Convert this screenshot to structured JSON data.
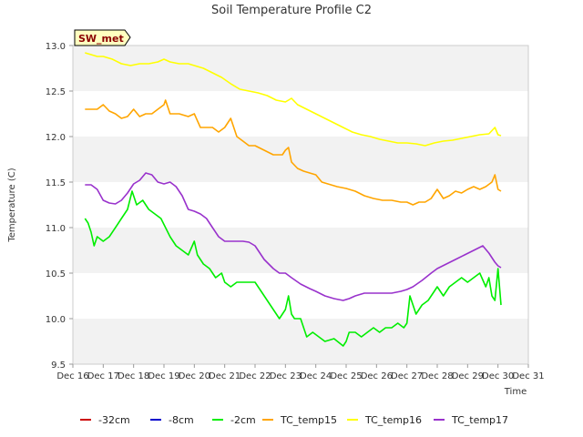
{
  "chart_data": {
    "type": "line",
    "title": "Soil Temperature Profile C2",
    "xlabel": "Time",
    "ylabel": "Temperature (C)",
    "badge": "SW_met",
    "ylim": [
      9.5,
      13.0
    ],
    "xlim": [
      16,
      31
    ],
    "y_ticks": [
      "9.5",
      "10.0",
      "10.5",
      "11.0",
      "11.5",
      "12.0",
      "12.5",
      "13.0"
    ],
    "x_ticks": [
      "Dec 16",
      "Dec 17",
      "Dec 18",
      "Dec 19",
      "Dec 20",
      "Dec 21",
      "Dec 22",
      "Dec 23",
      "Dec 24",
      "Dec 25",
      "Dec 26",
      "Dec 27",
      "Dec 28",
      "Dec 29",
      "Dec 30",
      "Dec 31"
    ],
    "grid_bands": true,
    "legend_position": "bottom",
    "series": [
      {
        "name": "-32cm",
        "color": "#cc0000",
        "x": [],
        "y": []
      },
      {
        "name": "-8cm",
        "color": "#0000cc",
        "x": [],
        "y": []
      },
      {
        "name": "-2cm",
        "color": "#00ee00",
        "x": [
          16.4,
          16.5,
          16.6,
          16.7,
          16.8,
          17.0,
          17.2,
          17.4,
          17.6,
          17.8,
          17.95,
          18.1,
          18.3,
          18.5,
          18.7,
          18.9,
          19.05,
          19.2,
          19.4,
          19.6,
          19.8,
          20.0,
          20.1,
          20.3,
          20.5,
          20.7,
          20.9,
          21.0,
          21.2,
          21.4,
          21.6,
          21.8,
          22.0,
          22.2,
          22.5,
          22.8,
          23.0,
          23.1,
          23.2,
          23.3,
          23.5,
          23.7,
          23.9,
          24.1,
          24.3,
          24.6,
          24.9,
          25.0,
          25.1,
          25.3,
          25.5,
          25.7,
          25.9,
          26.1,
          26.3,
          26.5,
          26.7,
          26.9,
          27.0,
          27.1,
          27.3,
          27.5,
          27.7,
          27.9,
          28.0,
          28.2,
          28.4,
          28.6,
          28.8,
          29.0,
          29.2,
          29.4,
          29.6,
          29.7,
          29.8,
          29.9,
          30.0,
          30.1
        ],
        "y": [
          11.1,
          11.05,
          10.95,
          10.8,
          10.9,
          10.85,
          10.9,
          11.0,
          11.1,
          11.2,
          11.4,
          11.25,
          11.3,
          11.2,
          11.15,
          11.1,
          11.0,
          10.9,
          10.8,
          10.75,
          10.7,
          10.85,
          10.7,
          10.6,
          10.55,
          10.45,
          10.5,
          10.4,
          10.35,
          10.4,
          10.4,
          10.4,
          10.4,
          10.3,
          10.15,
          10.0,
          10.1,
          10.25,
          10.05,
          10.0,
          10.0,
          9.8,
          9.85,
          9.8,
          9.75,
          9.78,
          9.7,
          9.75,
          9.85,
          9.85,
          9.8,
          9.85,
          9.9,
          9.85,
          9.9,
          9.9,
          9.95,
          9.9,
          9.95,
          10.25,
          10.05,
          10.15,
          10.2,
          10.3,
          10.35,
          10.25,
          10.35,
          10.4,
          10.45,
          10.4,
          10.45,
          10.5,
          10.35,
          10.45,
          10.25,
          10.2,
          10.55,
          10.15
        ]
      },
      {
        "name": "TC_temp15",
        "color": "#ffa500",
        "x": [
          16.4,
          16.6,
          16.8,
          17.0,
          17.2,
          17.4,
          17.6,
          17.8,
          18.0,
          18.2,
          18.4,
          18.6,
          18.8,
          19.0,
          19.05,
          19.2,
          19.5,
          19.8,
          20.0,
          20.2,
          20.4,
          20.6,
          20.8,
          21.0,
          21.2,
          21.4,
          21.6,
          21.8,
          22.0,
          22.3,
          22.6,
          22.9,
          23.0,
          23.1,
          23.2,
          23.4,
          23.6,
          23.8,
          24.0,
          24.2,
          24.4,
          24.7,
          25.0,
          25.3,
          25.6,
          25.9,
          26.2,
          26.5,
          26.8,
          27.0,
          27.2,
          27.4,
          27.6,
          27.8,
          28.0,
          28.2,
          28.4,
          28.6,
          28.8,
          29.0,
          29.2,
          29.4,
          29.6,
          29.8,
          29.9,
          30.0,
          30.1
        ],
        "y": [
          12.3,
          12.3,
          12.3,
          12.35,
          12.28,
          12.25,
          12.2,
          12.22,
          12.3,
          12.22,
          12.25,
          12.25,
          12.3,
          12.35,
          12.4,
          12.25,
          12.25,
          12.22,
          12.25,
          12.1,
          12.1,
          12.1,
          12.05,
          12.1,
          12.2,
          12.0,
          11.95,
          11.9,
          11.9,
          11.85,
          11.8,
          11.8,
          11.85,
          11.88,
          11.72,
          11.65,
          11.62,
          11.6,
          11.58,
          11.5,
          11.48,
          11.45,
          11.43,
          11.4,
          11.35,
          11.32,
          11.3,
          11.3,
          11.28,
          11.28,
          11.25,
          11.28,
          11.28,
          11.32,
          11.42,
          11.32,
          11.35,
          11.4,
          11.38,
          11.42,
          11.45,
          11.42,
          11.45,
          11.5,
          11.58,
          11.42,
          11.4
        ]
      },
      {
        "name": "TC_temp16",
        "color": "#ffff00",
        "x": [
          16.4,
          16.6,
          16.8,
          17.0,
          17.3,
          17.6,
          17.9,
          18.2,
          18.5,
          18.8,
          19.0,
          19.2,
          19.5,
          19.8,
          20.0,
          20.3,
          20.6,
          20.9,
          21.2,
          21.5,
          21.8,
          22.1,
          22.4,
          22.7,
          23.0,
          23.2,
          23.4,
          23.7,
          24.0,
          24.3,
          24.6,
          24.9,
          25.2,
          25.5,
          25.8,
          26.1,
          26.4,
          26.7,
          27.0,
          27.3,
          27.6,
          27.9,
          28.2,
          28.5,
          28.8,
          29.1,
          29.4,
          29.7,
          29.9,
          30.0,
          30.1
        ],
        "y": [
          12.92,
          12.9,
          12.88,
          12.88,
          12.85,
          12.8,
          12.78,
          12.8,
          12.8,
          12.82,
          12.85,
          12.82,
          12.8,
          12.8,
          12.78,
          12.75,
          12.7,
          12.65,
          12.58,
          12.52,
          12.5,
          12.48,
          12.45,
          12.4,
          12.38,
          12.42,
          12.35,
          12.3,
          12.25,
          12.2,
          12.15,
          12.1,
          12.05,
          12.02,
          12.0,
          11.97,
          11.95,
          11.93,
          11.93,
          11.92,
          11.9,
          11.93,
          11.95,
          11.96,
          11.98,
          12.0,
          12.02,
          12.03,
          12.1,
          12.02,
          12.01
        ]
      },
      {
        "name": "TC_temp17",
        "color": "#9932cc",
        "x": [
          16.4,
          16.6,
          16.8,
          17.0,
          17.2,
          17.4,
          17.6,
          17.8,
          18.0,
          18.2,
          18.4,
          18.6,
          18.8,
          19.0,
          19.2,
          19.4,
          19.6,
          19.8,
          20.0,
          20.2,
          20.4,
          20.6,
          20.8,
          21.0,
          21.2,
          21.4,
          21.6,
          21.8,
          22.0,
          22.3,
          22.6,
          22.8,
          23.0,
          23.2,
          23.5,
          23.8,
          24.0,
          24.3,
          24.6,
          24.9,
          25.1,
          25.3,
          25.6,
          25.9,
          26.2,
          26.5,
          26.8,
          27.0,
          27.2,
          27.5,
          27.8,
          28.0,
          28.3,
          28.6,
          28.9,
          29.2,
          29.5,
          29.7,
          29.9,
          30.0,
          30.1
        ],
        "y": [
          11.47,
          11.47,
          11.42,
          11.3,
          11.27,
          11.26,
          11.3,
          11.38,
          11.48,
          11.52,
          11.6,
          11.58,
          11.5,
          11.48,
          11.5,
          11.45,
          11.35,
          11.2,
          11.18,
          11.15,
          11.1,
          11.0,
          10.9,
          10.85,
          10.85,
          10.85,
          10.85,
          10.84,
          10.8,
          10.65,
          10.55,
          10.5,
          10.5,
          10.45,
          10.38,
          10.33,
          10.3,
          10.25,
          10.22,
          10.2,
          10.22,
          10.25,
          10.28,
          10.28,
          10.28,
          10.28,
          10.3,
          10.32,
          10.35,
          10.42,
          10.5,
          10.55,
          10.6,
          10.65,
          10.7,
          10.75,
          10.8,
          10.72,
          10.62,
          10.58,
          10.56
        ]
      }
    ]
  }
}
